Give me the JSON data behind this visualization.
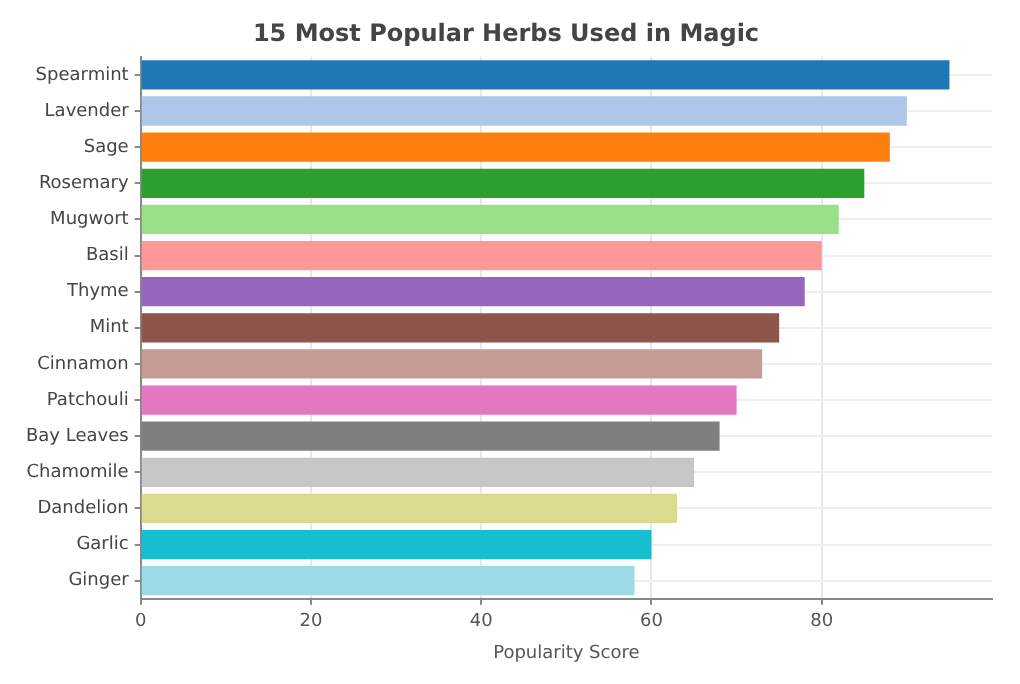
{
  "chart_data": {
    "type": "bar",
    "orientation": "horizontal",
    "title": "15 Most Popular Herbs Used in Magic",
    "xlabel": "Popularity Score",
    "categories": [
      "Spearmint",
      "Lavender",
      "Sage",
      "Rosemary",
      "Mugwort",
      "Basil",
      "Thyme",
      "Mint",
      "Cinnamon",
      "Patchouli",
      "Bay Leaves",
      "Chamomile",
      "Dandelion",
      "Garlic",
      "Ginger"
    ],
    "values": [
      95,
      90,
      88,
      85,
      82,
      80,
      78,
      75,
      73,
      70,
      68,
      65,
      63,
      60,
      58
    ],
    "colors": [
      "#1f77b4",
      "#aec7e8",
      "#ff7f0e",
      "#2ca02c",
      "#98df8a",
      "#ff9896",
      "#9467bd",
      "#8c564b",
      "#c49c94",
      "#e377c2",
      "#7f7f7f",
      "#c7c7c7",
      "#dbdb8d",
      "#17becf",
      "#9edae5"
    ],
    "xlim": [
      0,
      100
    ],
    "xticks": [
      0,
      20,
      40,
      60,
      80
    ],
    "grid": true
  }
}
